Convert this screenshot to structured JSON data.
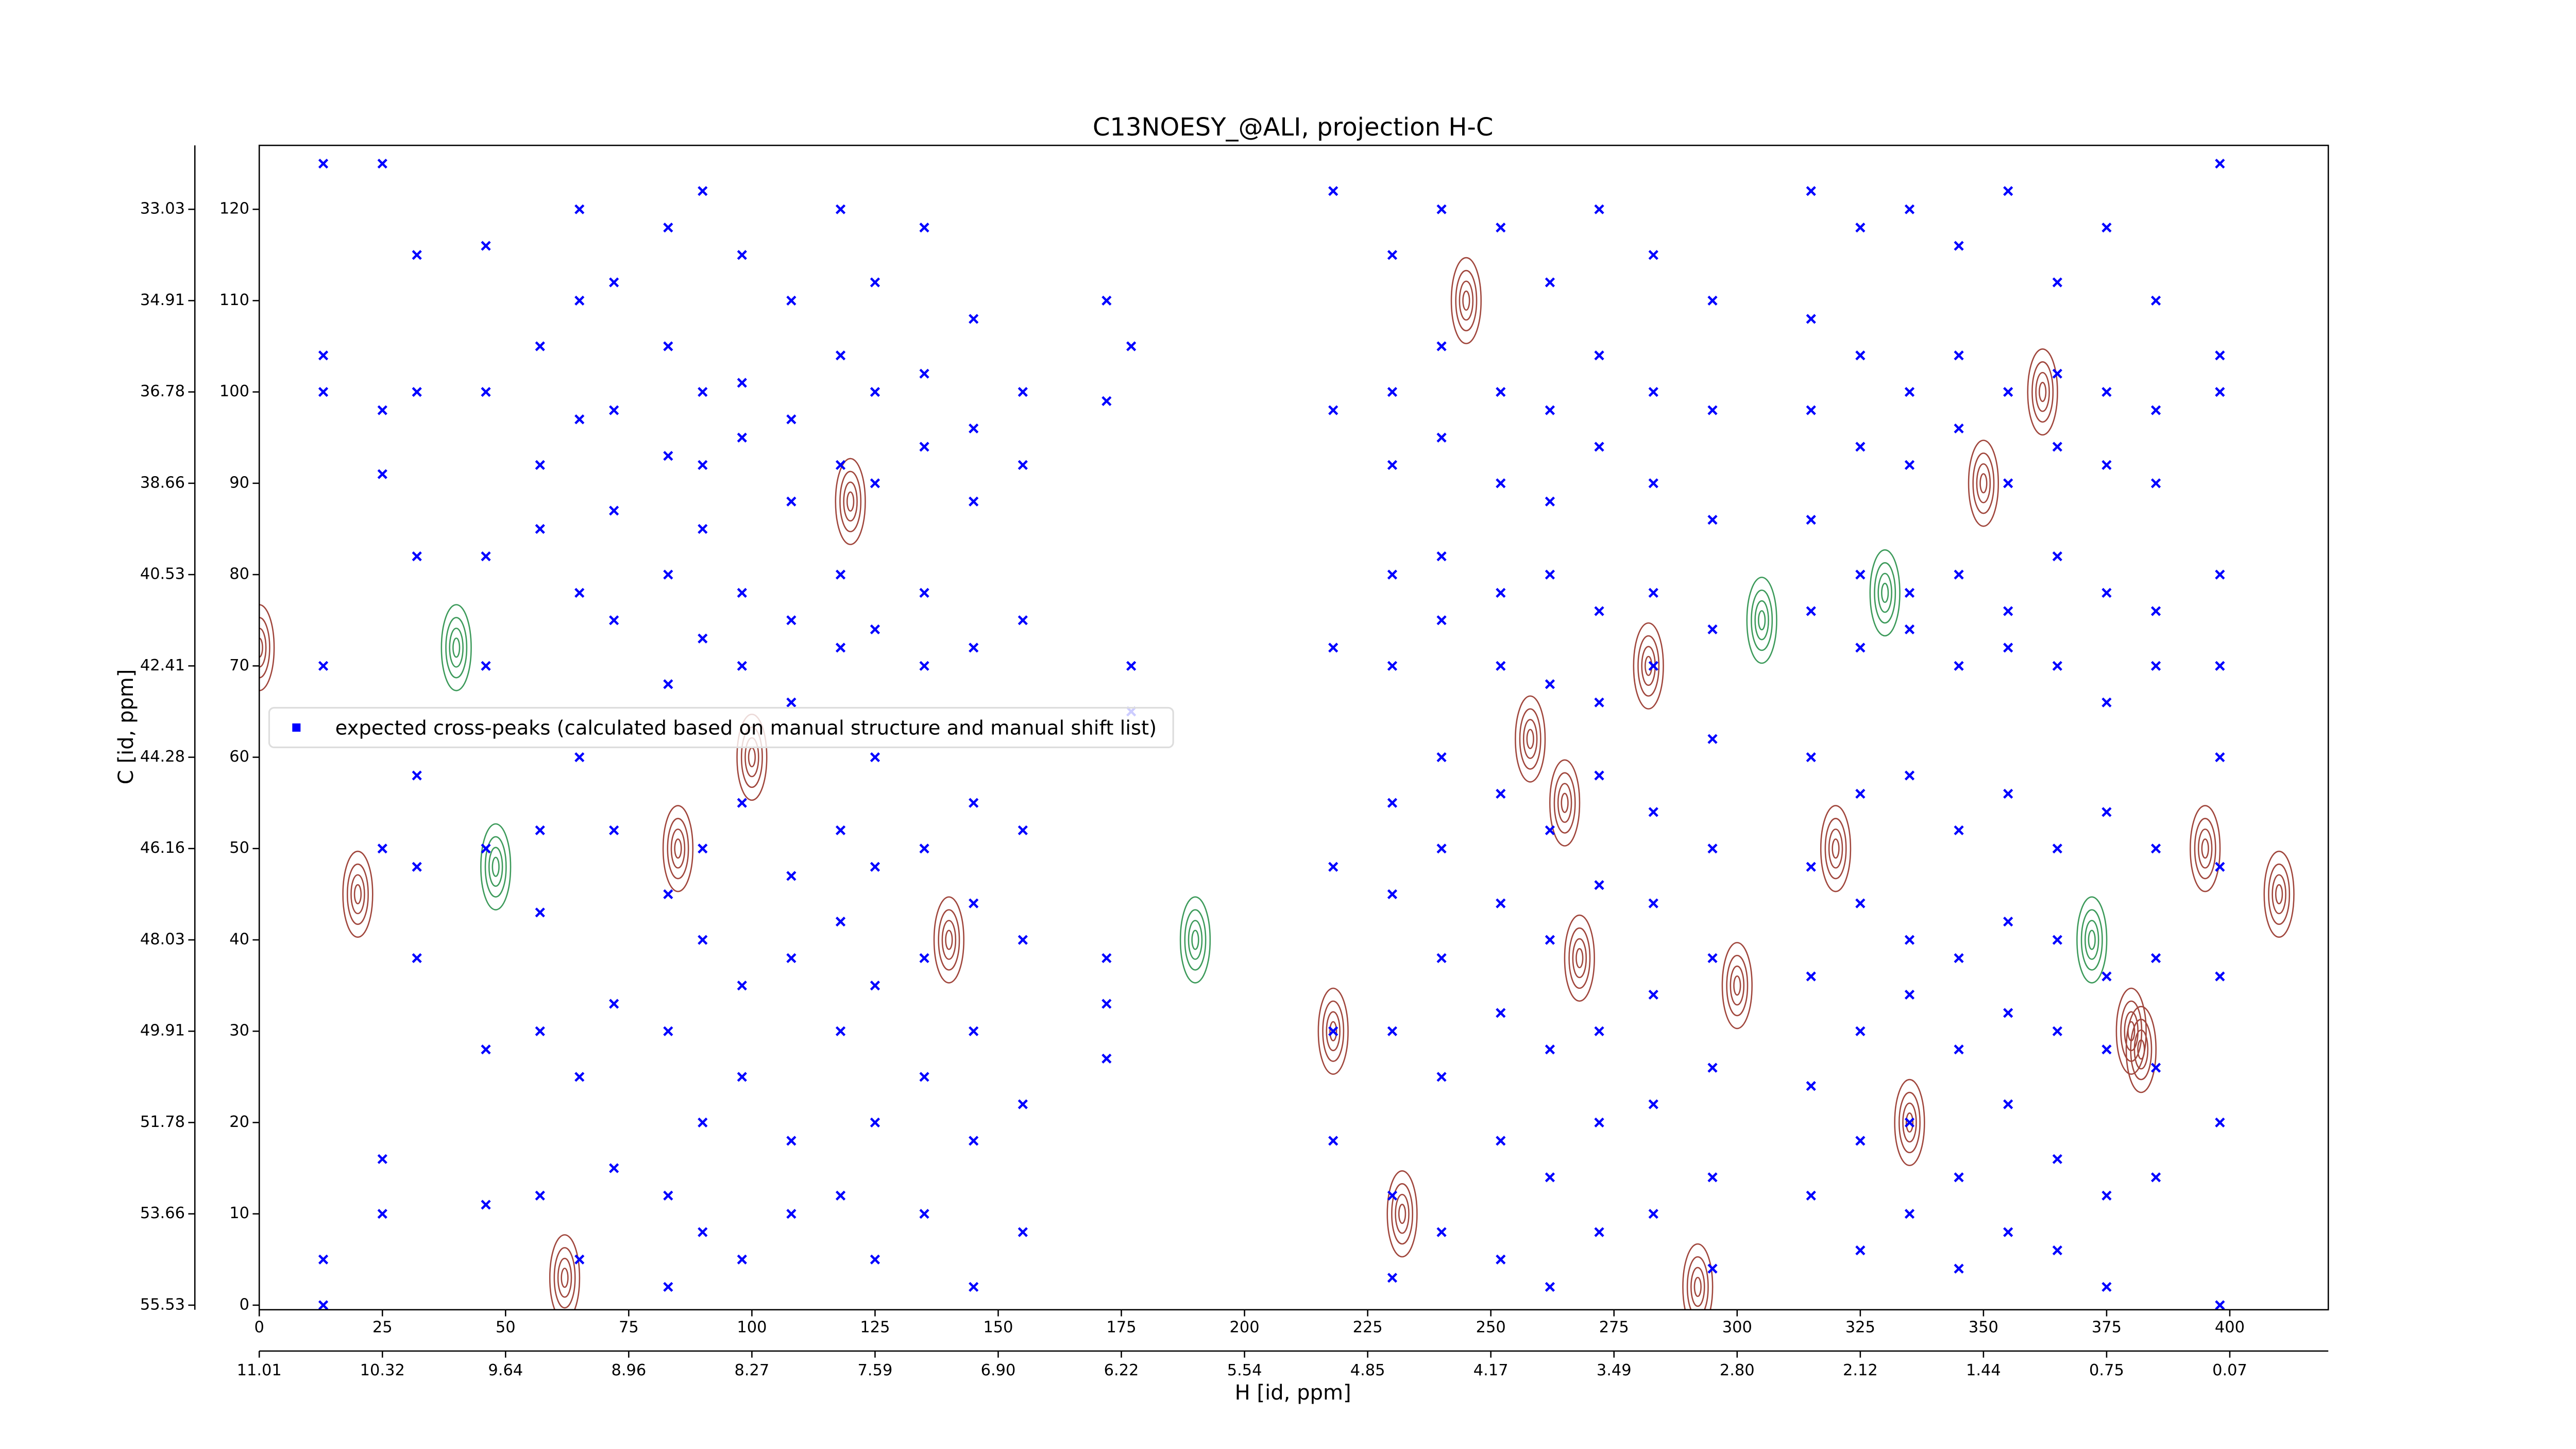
{
  "chart_data": {
    "type": "scatter",
    "title": "C13NOESY_@ALI, projection H-C",
    "x_label": "H [id, ppm]",
    "y_label": "C [id, ppm]",
    "xlim": [
      0,
      420
    ],
    "ylim": [
      -0.5,
      127
    ],
    "xticks": [
      0,
      25,
      50,
      75,
      100,
      125,
      150,
      175,
      200,
      225,
      250,
      275,
      300,
      325,
      350,
      375,
      400
    ],
    "yticks": [
      0,
      10,
      20,
      30,
      40,
      50,
      60,
      70,
      80,
      90,
      100,
      110,
      120
    ],
    "x2ticks": [
      {
        "value": 0,
        "label": "11.01"
      },
      {
        "value": 25,
        "label": "10.32"
      },
      {
        "value": 50,
        "label": "9.64"
      },
      {
        "value": 75,
        "label": "8.96"
      },
      {
        "value": 100,
        "label": "8.27"
      },
      {
        "value": 125,
        "label": "7.59"
      },
      {
        "value": 150,
        "label": "6.90"
      },
      {
        "value": 175,
        "label": "6.22"
      },
      {
        "value": 200,
        "label": "5.54"
      },
      {
        "value": 225,
        "label": "4.85"
      },
      {
        "value": 250,
        "label": "4.17"
      },
      {
        "value": 275,
        "label": "3.49"
      },
      {
        "value": 300,
        "label": "2.80"
      },
      {
        "value": 325,
        "label": "2.12"
      },
      {
        "value": 350,
        "label": "1.44"
      },
      {
        "value": 375,
        "label": "0.75"
      },
      {
        "value": 400,
        "label": "0.07"
      }
    ],
    "y2ticks": [
      {
        "value": 0,
        "label": "55.53"
      },
      {
        "value": 10,
        "label": "53.66"
      },
      {
        "value": 20,
        "label": "51.78"
      },
      {
        "value": 30,
        "label": "49.91"
      },
      {
        "value": 40,
        "label": "48.03"
      },
      {
        "value": 50,
        "label": "46.16"
      },
      {
        "value": 60,
        "label": "44.28"
      },
      {
        "value": 70,
        "label": "42.41"
      },
      {
        "value": 80,
        "label": "40.53"
      },
      {
        "value": 90,
        "label": "38.66"
      },
      {
        "value": 100,
        "label": "36.78"
      },
      {
        "value": 110,
        "label": "34.91"
      },
      {
        "value": 120,
        "label": "33.03"
      }
    ],
    "legend": "center left",
    "contours": {
      "color": "#a0463c",
      "color2": "#3c9a5a",
      "x": [
        0,
        20,
        40,
        62,
        85,
        100,
        120,
        140,
        190,
        218,
        232,
        245,
        258,
        268,
        282,
        292,
        305,
        320,
        335,
        350,
        362,
        372,
        382,
        395,
        410,
        48,
        265,
        300,
        330,
        380
      ],
      "y": [
        72,
        45,
        72,
        3,
        50,
        60,
        88,
        40,
        40,
        30,
        10,
        110,
        62,
        38,
        70,
        2,
        75,
        50,
        20,
        90,
        100,
        40,
        28,
        50,
        45,
        48,
        55,
        35,
        78,
        30
      ],
      "positive": [
        true,
        true,
        false,
        true,
        true,
        true,
        true,
        true,
        false,
        true,
        true,
        true,
        true,
        true,
        true,
        true,
        false,
        true,
        true,
        true,
        true,
        false,
        true,
        true,
        true,
        false,
        true,
        true,
        false,
        true
      ]
    },
    "series": [
      {
        "name": "expected cross-peaks (calculated based on manual structure and manual shift list)",
        "color": "#0000ff",
        "x": [
          13,
          13,
          13,
          13,
          13,
          13,
          25,
          25,
          25,
          25,
          25,
          25,
          32,
          32,
          32,
          32,
          32,
          32,
          46,
          46,
          46,
          46,
          46,
          46,
          46,
          57,
          57,
          57,
          57,
          57,
          57,
          57,
          65,
          65,
          65,
          65,
          65,
          65,
          65,
          72,
          72,
          72,
          72,
          72,
          72,
          72,
          83,
          83,
          83,
          83,
          83,
          83,
          83,
          83,
          83,
          90,
          90,
          90,
          90,
          90,
          90,
          90,
          90,
          90,
          98,
          98,
          98,
          98,
          98,
          98,
          98,
          98,
          98,
          108,
          108,
          108,
          108,
          108,
          108,
          108,
          108,
          108,
          118,
          118,
          118,
          118,
          118,
          118,
          118,
          118,
          118,
          125,
          125,
          125,
          125,
          125,
          125,
          125,
          125,
          125,
          135,
          135,
          135,
          135,
          135,
          135,
          135,
          135,
          135,
          145,
          145,
          145,
          145,
          145,
          145,
          145,
          145,
          145,
          155,
          155,
          155,
          155,
          155,
          155,
          155,
          172,
          172,
          172,
          172,
          172,
          177,
          177,
          177,
          218,
          218,
          218,
          218,
          218,
          218,
          230,
          230,
          230,
          230,
          230,
          230,
          230,
          230,
          230,
          230,
          240,
          240,
          240,
          240,
          240,
          240,
          240,
          240,
          240,
          240,
          252,
          252,
          252,
          252,
          252,
          252,
          252,
          252,
          252,
          252,
          262,
          262,
          262,
          262,
          262,
          262,
          262,
          262,
          262,
          262,
          272,
          272,
          272,
          272,
          272,
          272,
          272,
          272,
          272,
          272,
          283,
          283,
          283,
          283,
          283,
          283,
          283,
          283,
          283,
          283,
          295,
          295,
          295,
          295,
          295,
          295,
          295,
          295,
          295,
          295,
          315,
          315,
          315,
          315,
          315,
          315,
          315,
          315,
          315,
          315,
          325,
          325,
          325,
          325,
          325,
          325,
          325,
          325,
          325,
          325,
          335,
          335,
          335,
          335,
          335,
          335,
          335,
          335,
          335,
          335,
          345,
          345,
          345,
          345,
          345,
          345,
          345,
          345,
          345,
          345,
          355,
          355,
          355,
          355,
          355,
          355,
          355,
          355,
          355,
          355,
          365,
          365,
          365,
          365,
          365,
          365,
          365,
          365,
          365,
          365,
          375,
          375,
          375,
          375,
          375,
          375,
          375,
          375,
          375,
          375,
          385,
          385,
          385,
          385,
          385,
          385,
          385,
          385,
          385,
          398,
          398,
          398,
          398,
          398,
          398,
          398,
          398,
          398,
          398
        ],
        "y": [
          125,
          104,
          100,
          70,
          5,
          0,
          125,
          98,
          91,
          50,
          16,
          10,
          115,
          100,
          82,
          58,
          48,
          38,
          116,
          100,
          82,
          70,
          50,
          28,
          11,
          105,
          92,
          85,
          52,
          43,
          30,
          12,
          120,
          110,
          97,
          78,
          60,
          25,
          5,
          112,
          98,
          87,
          75,
          52,
          33,
          15,
          118,
          105,
          93,
          80,
          68,
          45,
          30,
          12,
          2,
          122,
          100,
          92,
          85,
          73,
          50,
          40,
          20,
          8,
          115,
          101,
          95,
          78,
          70,
          55,
          35,
          25,
          5,
          110,
          97,
          88,
          75,
          66,
          47,
          38,
          18,
          10,
          120,
          104,
          92,
          80,
          72,
          52,
          42,
          30,
          12,
          112,
          100,
          90,
          74,
          60,
          48,
          35,
          20,
          5,
          118,
          102,
          94,
          78,
          70,
          50,
          38,
          25,
          10,
          108,
          96,
          88,
          72,
          55,
          44,
          30,
          18,
          2,
          100,
          92,
          75,
          52,
          40,
          22,
          8,
          110,
          99,
          38,
          33,
          27,
          105,
          70,
          65,
          122,
          98,
          72,
          48,
          30,
          18,
          115,
          100,
          92,
          80,
          70,
          55,
          45,
          30,
          12,
          3,
          120,
          105,
          95,
          82,
          75,
          60,
          50,
          38,
          25,
          8,
          118,
          100,
          90,
          78,
          70,
          56,
          44,
          32,
          18,
          5,
          112,
          98,
          88,
          80,
          68,
          52,
          40,
          28,
          14,
          2,
          120,
          104,
          94,
          76,
          66,
          58,
          46,
          30,
          20,
          8,
          115,
          100,
          90,
          78,
          70,
          54,
          44,
          34,
          22,
          10,
          110,
          98,
          86,
          74,
          62,
          50,
          38,
          26,
          14,
          4,
          122,
          108,
          98,
          86,
          76,
          60,
          48,
          36,
          24,
          12,
          118,
          104,
          94,
          80,
          72,
          56,
          44,
          30,
          18,
          6,
          120,
          100,
          92,
          78,
          74,
          58,
          40,
          34,
          20,
          10,
          116,
          104,
          96,
          80,
          70,
          52,
          38,
          28,
          14,
          4,
          122,
          100,
          90,
          76,
          72,
          56,
          42,
          32,
          22,
          8,
          112,
          102,
          94,
          82,
          70,
          50,
          40,
          30,
          16,
          6,
          118,
          100,
          92,
          78,
          66,
          54,
          36,
          28,
          12,
          2,
          110,
          98,
          90,
          76,
          70,
          50,
          38,
          26,
          14,
          125,
          104,
          100,
          80,
          70,
          60,
          48,
          36,
          20,
          0
        ]
      }
    ]
  }
}
